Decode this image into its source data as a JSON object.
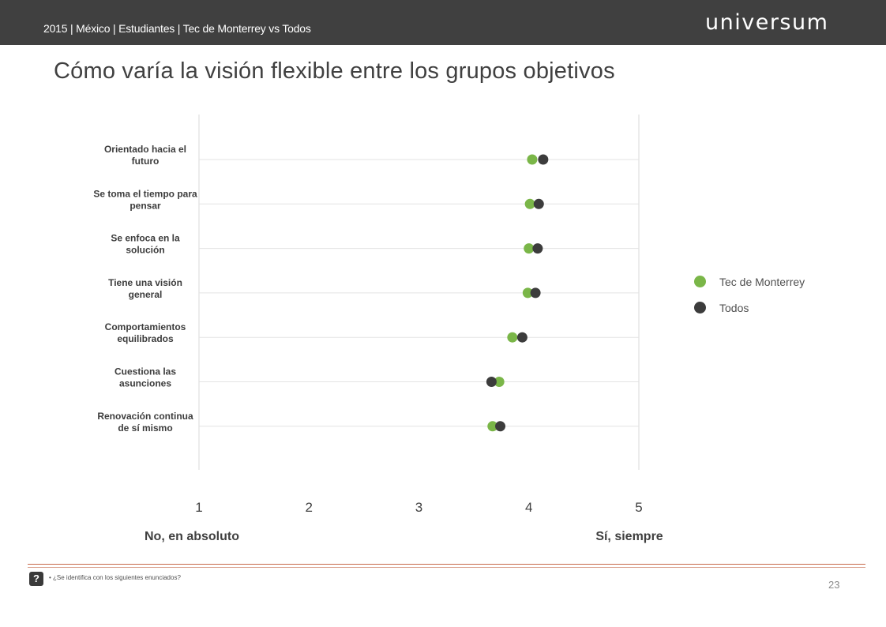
{
  "header": {
    "breadcrumb": "2015 | México | Estudiantes | Tec de Monterrey vs Todos",
    "logo": "universum"
  },
  "page_title": "Cómo varía la visión flexible entre los grupos objetivos",
  "chart_data": {
    "type": "scatter",
    "orientation": "horizontal-dot-plot",
    "title": "",
    "xlabel": "",
    "ylabel": "",
    "xlim": [
      1,
      5
    ],
    "x_ticks": [
      "1",
      "2",
      "3",
      "4",
      "5"
    ],
    "x_scale_labels": {
      "min": "No, en absoluto",
      "max": "Sí, siempre"
    },
    "categories": [
      "Orientado hacia el futuro",
      "Se toma el tiempo para pensar",
      "Se enfoca en la solución",
      "Tiene una visión general",
      "Comportamientos equilibrados",
      "Cuestiona las asunciones",
      "Renovación continua de sí mismo"
    ],
    "category_lines": [
      [
        "Orientado hacia el",
        "futuro"
      ],
      [
        "Se toma el tiempo para",
        "pensar"
      ],
      [
        "Se enfoca en la",
        "solución"
      ],
      [
        "Tiene una visión",
        "general"
      ],
      [
        "Comportamientos",
        "equilibrados"
      ],
      [
        "Cuestiona las",
        "asunciones"
      ],
      [
        "Renovación continua",
        "de sí mismo"
      ]
    ],
    "series": [
      {
        "name": "Tec de Monterrey",
        "color": "#7ab648",
        "values": [
          4.03,
          4.01,
          4.0,
          3.99,
          3.85,
          3.73,
          3.67
        ]
      },
      {
        "name": "Todos",
        "color": "#3c3c3c",
        "values": [
          4.13,
          4.09,
          4.08,
          4.06,
          3.94,
          3.66,
          3.74
        ]
      }
    ],
    "grid": true,
    "legend_position": "right"
  },
  "footer": {
    "help_icon": "?",
    "footnote": "•  ¿Se identifica con los siguientes enunciados?",
    "page_number": "23"
  }
}
